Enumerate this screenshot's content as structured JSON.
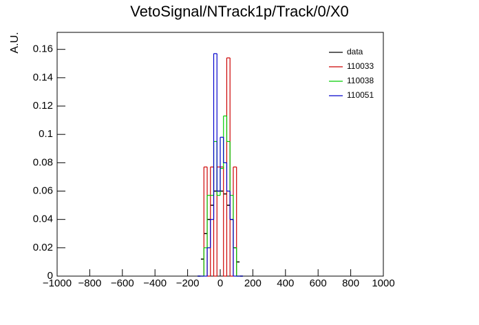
{
  "chart_data": {
    "type": "histogram",
    "title": "VetoSignal/NTrack1p/Track/0/X0",
    "y_label": "A.U.",
    "bins": [
      -140,
      -120,
      -100,
      -80,
      -60,
      -40,
      -20,
      0,
      20,
      40,
      60,
      80,
      100,
      120,
      140
    ],
    "series": [
      {
        "name": "data",
        "color": "#000000",
        "style": "points",
        "values": [
          0,
          0.012,
          0.03,
          0.04,
          0.05,
          0.06,
          0.06,
          0.06,
          0.058,
          0.05,
          0.04,
          0.02,
          0.01,
          0
        ]
      },
      {
        "name": "110033",
        "color": "#cc0000",
        "style": "step",
        "values": [
          0,
          0,
          0.077,
          0,
          0.077,
          0,
          0.077,
          0.077,
          0,
          0.154,
          0,
          0.077,
          0,
          0
        ]
      },
      {
        "name": "110038",
        "color": "#00cc00",
        "style": "step",
        "values": [
          0,
          0,
          0.02,
          0.057,
          0.057,
          0.095,
          0.057,
          0.076,
          0.113,
          0.095,
          0.057,
          0.02,
          0,
          0
        ]
      },
      {
        "name": "110051",
        "color": "#0000cc",
        "style": "step",
        "values": [
          0,
          0,
          0,
          0.02,
          0.04,
          0.157,
          0.06,
          0.098,
          0.08,
          0.06,
          0.04,
          0,
          0,
          0
        ]
      }
    ],
    "xlim": [
      -1000,
      1000
    ],
    "ylim": [
      0,
      0.172
    ],
    "xticks": [
      {
        "value": -1000,
        "label": "−1000"
      },
      {
        "value": -800,
        "label": "−800"
      },
      {
        "value": -600,
        "label": "−600"
      },
      {
        "value": -400,
        "label": "−400"
      },
      {
        "value": -200,
        "label": "−200"
      },
      0,
      200,
      400,
      600,
      800,
      1000
    ],
    "yticks": [
      0,
      0.02,
      0.04,
      0.06,
      0.08,
      0.1,
      0.12,
      0.14,
      0.16
    ],
    "legend": "top-right"
  }
}
